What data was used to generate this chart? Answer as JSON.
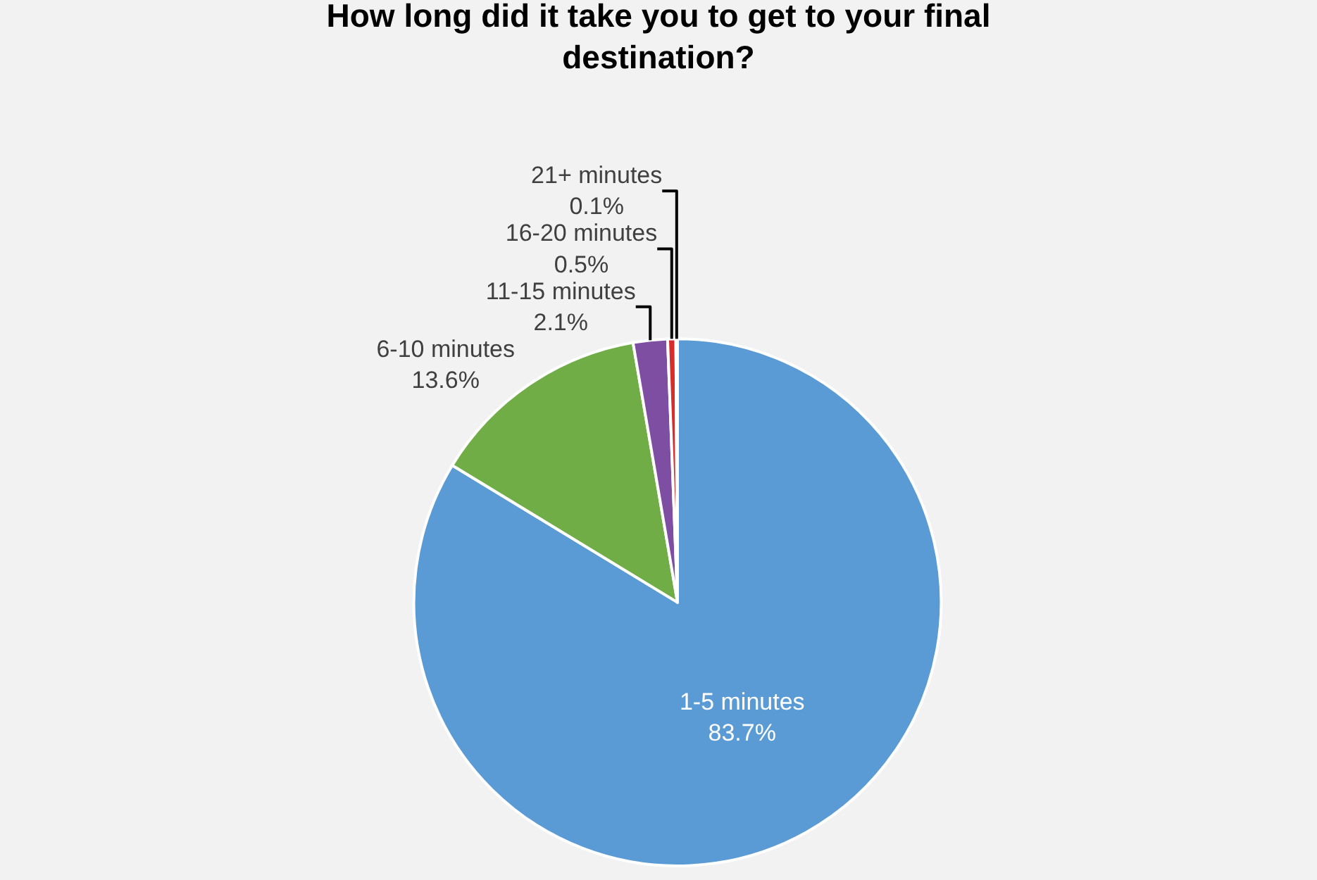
{
  "chart_data": {
    "type": "pie",
    "title": "How long did it take you to get to your final destination?",
    "categories": [
      "1-5 minutes",
      "6-10 minutes",
      "11-15 minutes",
      "16-20 minutes",
      "21+ minutes"
    ],
    "values": [
      83.7,
      13.6,
      2.1,
      0.5,
      0.1
    ],
    "value_labels": [
      "83.7%",
      "13.6%",
      "2.1%",
      "0.5%",
      "0.1%"
    ],
    "colors": [
      "#5b9bd5",
      "#70ad47",
      "#7e4ea3",
      "#d62d2d",
      "#ffc000"
    ],
    "legend": false
  }
}
